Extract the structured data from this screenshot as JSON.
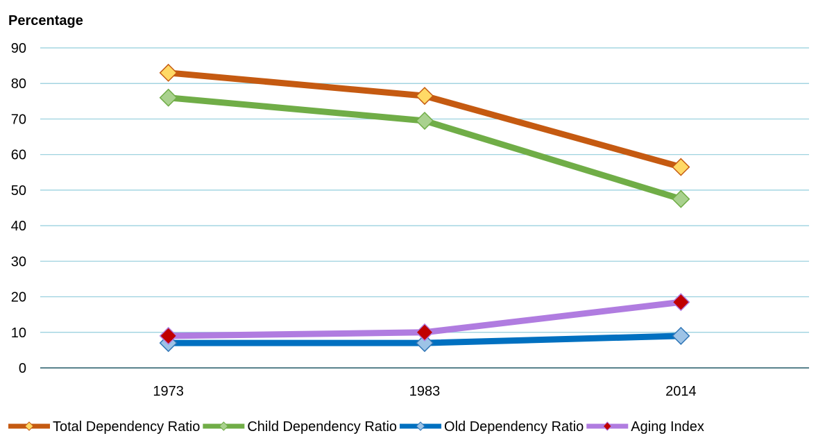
{
  "chart_data": {
    "type": "line",
    "title": "",
    "ylabel": "Percentage",
    "xlabel": "",
    "categories": [
      "1973",
      "1983",
      "2014"
    ],
    "ylim": [
      0,
      90
    ],
    "yticks": [
      "0",
      "10",
      "20",
      "30",
      "40",
      "50",
      "60",
      "70",
      "80",
      "90"
    ],
    "grid": true,
    "legend_position": "bottom",
    "series": [
      {
        "name": "Total Dependency Ratio",
        "values": [
          83,
          76.5,
          56.5
        ],
        "line_color": "#C55A11",
        "marker": "diamond",
        "marker_fill": "#FFD966",
        "marker_stroke": "#C55A11"
      },
      {
        "name": "Child Dependency Ratio",
        "values": [
          76,
          69.5,
          47.5
        ],
        "line_color": "#70AD47",
        "marker": "diamond",
        "marker_fill": "#A9D18E",
        "marker_stroke": "#70AD47"
      },
      {
        "name": "Old Dependency Ratio",
        "values": [
          7,
          7,
          9
        ],
        "line_color": "#0070C0",
        "marker": "diamond",
        "marker_fill": "#9DC3E6",
        "marker_stroke": "#2E75B6"
      },
      {
        "name": "Aging Index",
        "values": [
          9,
          10,
          18.5
        ],
        "line_color": "#B07CE0",
        "marker": "diamond",
        "marker_fill": "#C00000",
        "marker_stroke": "#B07CE0"
      }
    ],
    "gridline_color": "#92CDDC",
    "axis_color": "#215967"
  }
}
